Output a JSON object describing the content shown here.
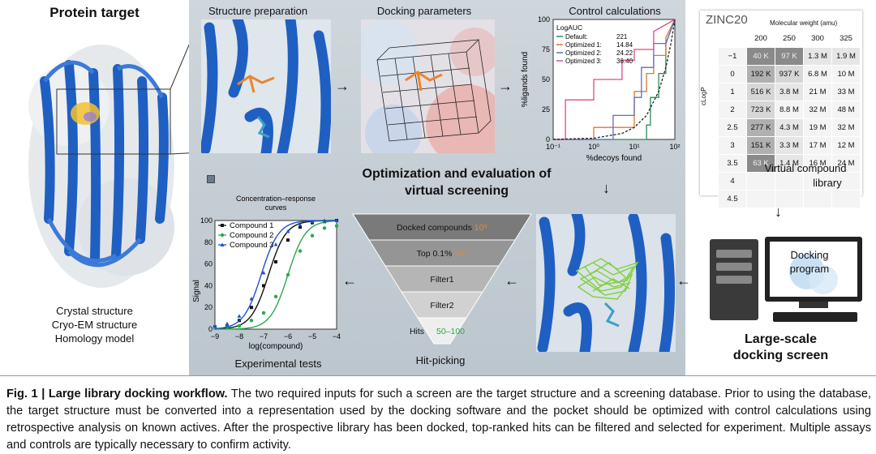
{
  "left": {
    "title": "Protein target",
    "sources": [
      "Crystal structure",
      "Cryo-EM structure",
      "Homology model"
    ]
  },
  "middle": {
    "structure_prep": "Structure preparation",
    "docking_params": "Docking parameters",
    "control_calc": "Control calculations",
    "center_title_1": "Optimization and evaluation of",
    "center_title_2": "virtual screening",
    "experimental": "Experimental tests",
    "hit_picking": "Hit-picking",
    "funnel": [
      {
        "label": "Docked compounds",
        "suffix": "10⁹",
        "color": "#7a7a7a"
      },
      {
        "label": "Top 0.1%",
        "suffix": "10⁵",
        "color": "#959595"
      },
      {
        "label": "Filter1",
        "suffix": "",
        "color": "#b5b5b5"
      },
      {
        "label": "Filter2",
        "suffix": "",
        "color": "#d1d1d1"
      },
      {
        "label": "Hits",
        "suffix": "50–100",
        "color": "#eeeeee"
      }
    ]
  },
  "roc_chart": {
    "chart_data": {
      "type": "line",
      "title": "LogAUC",
      "xlabel": "%decoys found",
      "ylabel": "%ligands found",
      "xscale": "log",
      "xlim": [
        0.1,
        100
      ],
      "ylim": [
        0,
        100
      ],
      "xticks": [
        "10⁻¹",
        "10⁰",
        "10¹",
        "10²"
      ],
      "yticks": [
        "0",
        "25",
        "50",
        "75",
        "100"
      ],
      "series": [
        {
          "name": "Default:",
          "value": "221",
          "color": "#2a8c5a",
          "points": [
            [
              0.1,
              0
            ],
            [
              20,
              0
            ],
            [
              20,
              12
            ],
            [
              25,
              12
            ],
            [
              25,
              35
            ],
            [
              40,
              35
            ],
            [
              40,
              55
            ],
            [
              60,
              55
            ],
            [
              60,
              80
            ],
            [
              100,
              100
            ]
          ]
        },
        {
          "name": "Optimized 1:",
          "value": "14.84",
          "color": "#d9792e",
          "points": [
            [
              0.1,
              0
            ],
            [
              1,
              0
            ],
            [
              1,
              10
            ],
            [
              10,
              10
            ],
            [
              10,
              40
            ],
            [
              20,
              40
            ],
            [
              20,
              55
            ],
            [
              30,
              55
            ],
            [
              30,
              70
            ],
            [
              60,
              70
            ],
            [
              60,
              85
            ],
            [
              100,
              100
            ]
          ]
        },
        {
          "name": "Optimized 2:",
          "value": "24.22",
          "color": "#5b6fc4",
          "points": [
            [
              0.1,
              0
            ],
            [
              3,
              0
            ],
            [
              3,
              20
            ],
            [
              10,
              20
            ],
            [
              10,
              35
            ],
            [
              15,
              35
            ],
            [
              15,
              60
            ],
            [
              30,
              60
            ],
            [
              30,
              80
            ],
            [
              60,
              80
            ],
            [
              100,
              100
            ]
          ]
        },
        {
          "name": "Optimized 3:",
          "value": "36.40",
          "color": "#d94d8a",
          "points": [
            [
              0.1,
              0
            ],
            [
              0.2,
              0
            ],
            [
              0.2,
              33
            ],
            [
              1,
              33
            ],
            [
              1,
              50
            ],
            [
              5,
              50
            ],
            [
              5,
              66
            ],
            [
              10,
              66
            ],
            [
              10,
              75
            ],
            [
              30,
              75
            ],
            [
              30,
              90
            ],
            [
              100,
              100
            ]
          ]
        },
        {
          "name": "random",
          "color": "#222222",
          "dashed": true,
          "points": [
            [
              0.1,
              0.1
            ],
            [
              1,
              1
            ],
            [
              5,
              5
            ],
            [
              10,
              10
            ],
            [
              20,
              20
            ],
            [
              40,
              40
            ],
            [
              60,
              60
            ],
            [
              80,
              80
            ],
            [
              100,
              100
            ]
          ]
        }
      ]
    }
  },
  "dose_chart": {
    "chart_data": {
      "type": "scatter",
      "title": "Concentration–response curves",
      "xlabel": "log(compound)",
      "ylabel": "Signal",
      "xlim": [
        -9,
        -4
      ],
      "ylim": [
        0,
        100
      ],
      "xticks": [
        "−9",
        "−8",
        "−7",
        "−6",
        "−5",
        "−4"
      ],
      "yticks": [
        "0",
        "20",
        "40",
        "60",
        "80",
        "100"
      ],
      "series": [
        {
          "name": "Compound 1",
          "color": "#111111",
          "marker": "square",
          "ec50": -6.8,
          "points": [
            [
              -9,
              2
            ],
            [
              -8.5,
              3
            ],
            [
              -8,
              8
            ],
            [
              -7.5,
              20
            ],
            [
              -7,
              40
            ],
            [
              -6.5,
              62
            ],
            [
              -6,
              82
            ],
            [
              -5.5,
              94
            ],
            [
              -5,
              98
            ],
            [
              -4.5,
              99
            ],
            [
              -4,
              100
            ]
          ]
        },
        {
          "name": "Compound 2",
          "color": "#2aa84a",
          "marker": "circle",
          "ec50": -6.0,
          "points": [
            [
              -9,
              1
            ],
            [
              -8.5,
              2
            ],
            [
              -8,
              3
            ],
            [
              -7.5,
              8
            ],
            [
              -7,
              15
            ],
            [
              -6.5,
              30
            ],
            [
              -6,
              50
            ],
            [
              -5.5,
              72
            ],
            [
              -5,
              86
            ],
            [
              -4.5,
              93
            ],
            [
              -4,
              95
            ]
          ]
        },
        {
          "name": "Compound 3",
          "color": "#1f4fd6",
          "marker": "triangle",
          "ec50": -7.1,
          "points": [
            [
              -9,
              3
            ],
            [
              -8.5,
              5
            ],
            [
              -8,
              12
            ],
            [
              -7.5,
              28
            ],
            [
              -7,
              52
            ],
            [
              -6.5,
              78
            ],
            [
              -6,
              90
            ],
            [
              -5.5,
              96
            ],
            [
              -5,
              99
            ],
            [
              -4.5,
              100
            ],
            [
              -4,
              101
            ]
          ]
        }
      ]
    }
  },
  "right": {
    "db_name": "ZINC20",
    "mw_label": "Molecular weight (amu)",
    "logp_label": "cLogP",
    "mw_cols": [
      "200",
      "250",
      "300",
      "325"
    ],
    "rows": [
      {
        "logp": "−1",
        "cells": [
          "40 K",
          "97 K",
          "1.3 M",
          "1.9 M"
        ]
      },
      {
        "logp": "0",
        "cells": [
          "192 K",
          "937 K",
          "6.8 M",
          "10 M"
        ]
      },
      {
        "logp": "1",
        "cells": [
          "516 K",
          "3.8 M",
          "21 M",
          "33 M"
        ]
      },
      {
        "logp": "2",
        "cells": [
          "723 K",
          "8.8 M",
          "32 M",
          "48 M"
        ]
      },
      {
        "logp": "2.5",
        "cells": [
          "277 K",
          "4.3 M",
          "19 M",
          "32 M"
        ]
      },
      {
        "logp": "3",
        "cells": [
          "151 K",
          "3.3 M",
          "17 M",
          "12 M"
        ]
      },
      {
        "logp": "3.5",
        "cells": [
          "63 K",
          "1.4 M",
          "16 M",
          "24 M"
        ]
      },
      {
        "logp": "4",
        "cells": [
          "",
          "",
          "",
          ""
        ]
      },
      {
        "logp": "4.5",
        "cells": [
          "",
          "",
          "",
          ""
        ]
      }
    ],
    "library_label_1": "Virtual compound",
    "library_label_2": "library",
    "docking_program_1": "Docking",
    "docking_program_2": "program",
    "screen_label_1": "Large-scale",
    "screen_label_2": "docking screen"
  },
  "caption": {
    "bold": "Fig. 1 | Large library docking workflow.",
    "text": " The two required inputs for such a screen are the target structure and a screening database. Prior to using the database, the target structure must be converted into a representation used by the docking software and the pocket should be optimized with control calculations using retrospective analysis on known actives. After the prospective library has been docked, top-ranked hits can be filtered and selected for experiment. Multiple assays and controls are typically necessary to confirm activity."
  },
  "colors": {
    "protein": "#1f5fc2",
    "ligand": "#e8862e",
    "panel_bg": "#c8d0d6",
    "roc_default": "#2a8c5a",
    "roc_opt1": "#d9792e",
    "roc_opt2": "#5b6fc4",
    "roc_opt3": "#d94d8a"
  }
}
